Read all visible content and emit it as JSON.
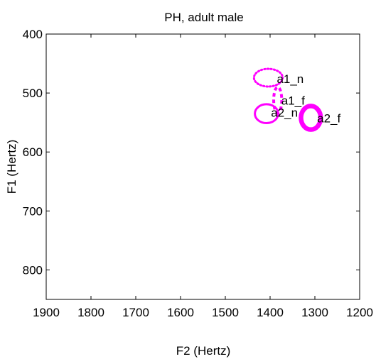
{
  "chart_data": {
    "type": "scatter",
    "title": "PH, adult male",
    "xlabel": "F2 (Hertz)",
    "ylabel": "F1 (Hertz)",
    "xlim": [
      1900,
      1200
    ],
    "ylim": [
      400,
      850
    ],
    "x_reversed": true,
    "y_reversed": true,
    "x_ticks": [
      "1900",
      "1800",
      "1700",
      "1600",
      "1500",
      "1400",
      "1300",
      "1200"
    ],
    "y_ticks": [
      "400",
      "500",
      "600",
      "700",
      "800"
    ],
    "grid": false,
    "color": "#ff00ff",
    "series": [
      {
        "label": "a1_n",
        "ellipse": {
          "cx": 1404,
          "cy": 474,
          "rx": 32,
          "ry": 15
        },
        "line": "dotted"
      },
      {
        "label": "a1_f",
        "ellipse": {
          "cx": 1383,
          "cy": 512,
          "rx": 9,
          "ry": 22
        },
        "line": "dashed"
      },
      {
        "label": "a2_n",
        "ellipse": {
          "cx": 1408,
          "cy": 535,
          "rx": 26,
          "ry": 16
        },
        "line": "solid"
      },
      {
        "label": "a2_f",
        "ellipse": {
          "cx": 1309,
          "cy": 542,
          "rx": 22,
          "ry": 20
        },
        "line": "thick"
      }
    ],
    "annotations": [
      {
        "text": "a1_n",
        "x": 1385,
        "y": 483
      },
      {
        "text": "a1_f",
        "x": 1375,
        "y": 520
      },
      {
        "text": "a2_n",
        "x": 1398,
        "y": 540
      },
      {
        "text": "a2_f",
        "x": 1295,
        "y": 550
      }
    ]
  }
}
